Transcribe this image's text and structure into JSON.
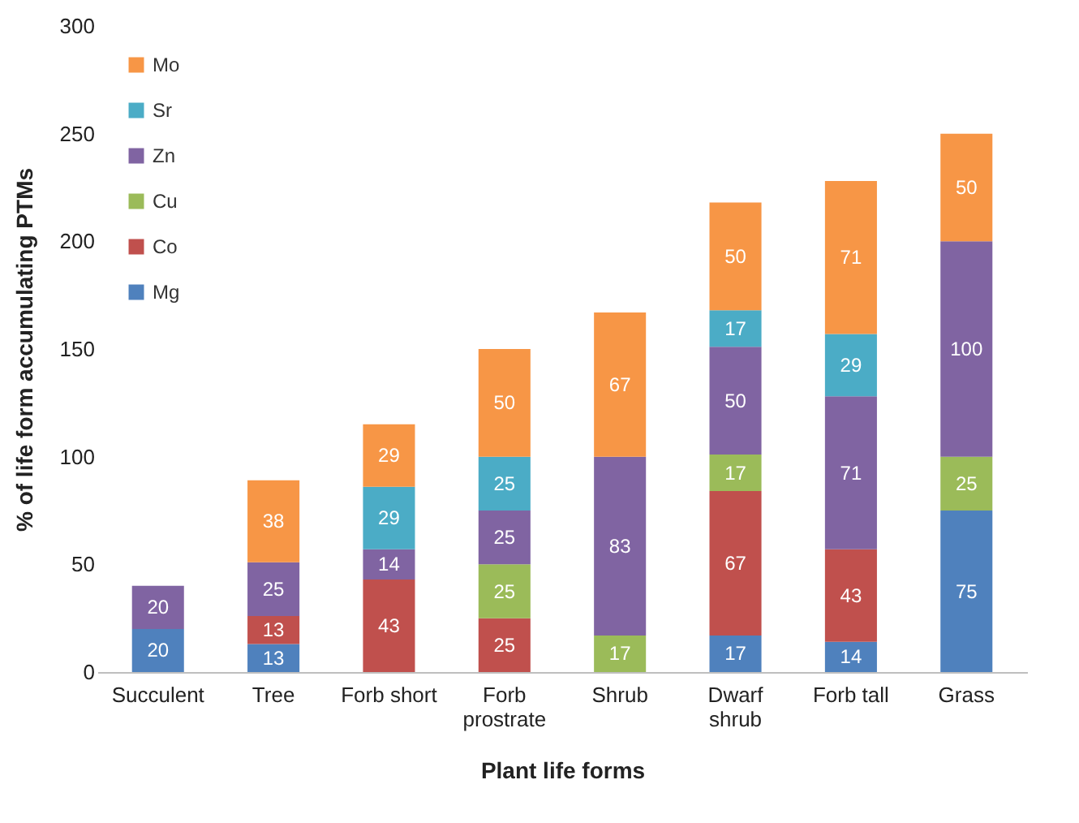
{
  "chart_data": {
    "type": "bar",
    "stacked": true,
    "data_labels": true,
    "xlabel": "Plant life forms",
    "ylabel": "% of life form accumulating PTMs",
    "categories": [
      "Succulent",
      "Tree",
      "Forb short",
      "Forb prostrate",
      "Shrub",
      "Dwarf shrub",
      "Forb tall",
      "Grass"
    ],
    "ylim": [
      0,
      300
    ],
    "yticks": [
      0,
      50,
      100,
      150,
      200,
      250,
      300
    ],
    "grid": false,
    "legend": "top left",
    "series": [
      {
        "name": "Mg",
        "color": "#4f81bd",
        "values": [
          20,
          13,
          null,
          null,
          null,
          17,
          14,
          75
        ]
      },
      {
        "name": "Co",
        "color": "#c0504d",
        "values": [
          null,
          13,
          43,
          25,
          null,
          67,
          43,
          null
        ]
      },
      {
        "name": "Cu",
        "color": "#9bbb59",
        "values": [
          null,
          null,
          null,
          25,
          17,
          17,
          null,
          25
        ]
      },
      {
        "name": "Zn",
        "color": "#8064a2",
        "values": [
          20,
          25,
          14,
          25,
          83,
          50,
          71,
          100
        ]
      },
      {
        "name": "Sr",
        "color": "#4bacc6",
        "values": [
          null,
          null,
          29,
          25,
          null,
          17,
          29,
          null
        ]
      },
      {
        "name": "Mo",
        "color": "#f79646",
        "values": [
          null,
          38,
          29,
          50,
          67,
          50,
          71,
          50
        ]
      }
    ]
  }
}
